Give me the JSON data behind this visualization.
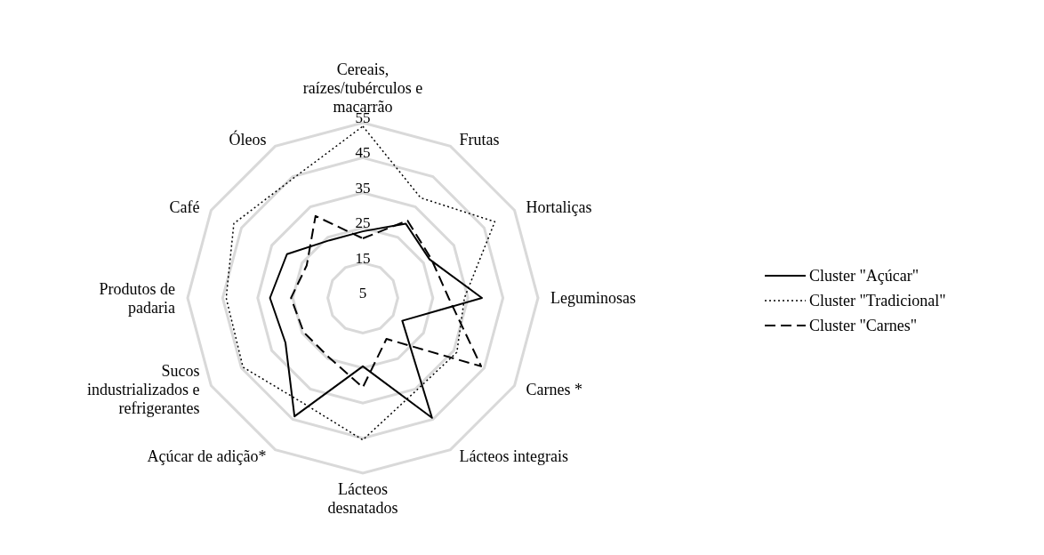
{
  "chart_data": {
    "type": "radar",
    "categories": [
      "Cereais,\nraízes/tubérculos e\nmacarrão",
      "Frutas",
      "Hortaliças",
      "Leguminosas",
      "Carnes *",
      "Lácteos integrais",
      "Lácteos\ndesnatados",
      "Açúcar de adição*",
      "Sucos\nindustrializados e\nrefrigerantes",
      "Produtos de\npadaria",
      "Café",
      "Óleos"
    ],
    "series": [
      {
        "name": "Cluster \"Açúcar\"",
        "color": "#000000",
        "line_style": "solid",
        "values": [
          24,
          29.5,
          27,
          39,
          18,
          44.5,
          24.5,
          44,
          30.5,
          31.5,
          30,
          24
        ]
      },
      {
        "name": "Cluster \"Tradicional\"",
        "color": "#000000",
        "line_style": "dotted",
        "values": [
          54,
          38,
          48.5,
          34,
          36,
          35.5,
          45.5,
          39.5,
          44.5,
          44,
          47.5,
          44.5
        ]
      },
      {
        "name": "Cluster \"Carnes\"",
        "color": "#000000",
        "line_style": "dashed",
        "values": [
          22,
          30.5,
          27.5,
          29.5,
          44,
          18.5,
          30.5,
          24.5,
          24.5,
          25.5,
          23.5,
          32
        ]
      }
    ],
    "ylim": [
      5,
      55
    ],
    "yticks": [
      5,
      15,
      25,
      35,
      45,
      55
    ],
    "grid": true,
    "legend": "right"
  }
}
